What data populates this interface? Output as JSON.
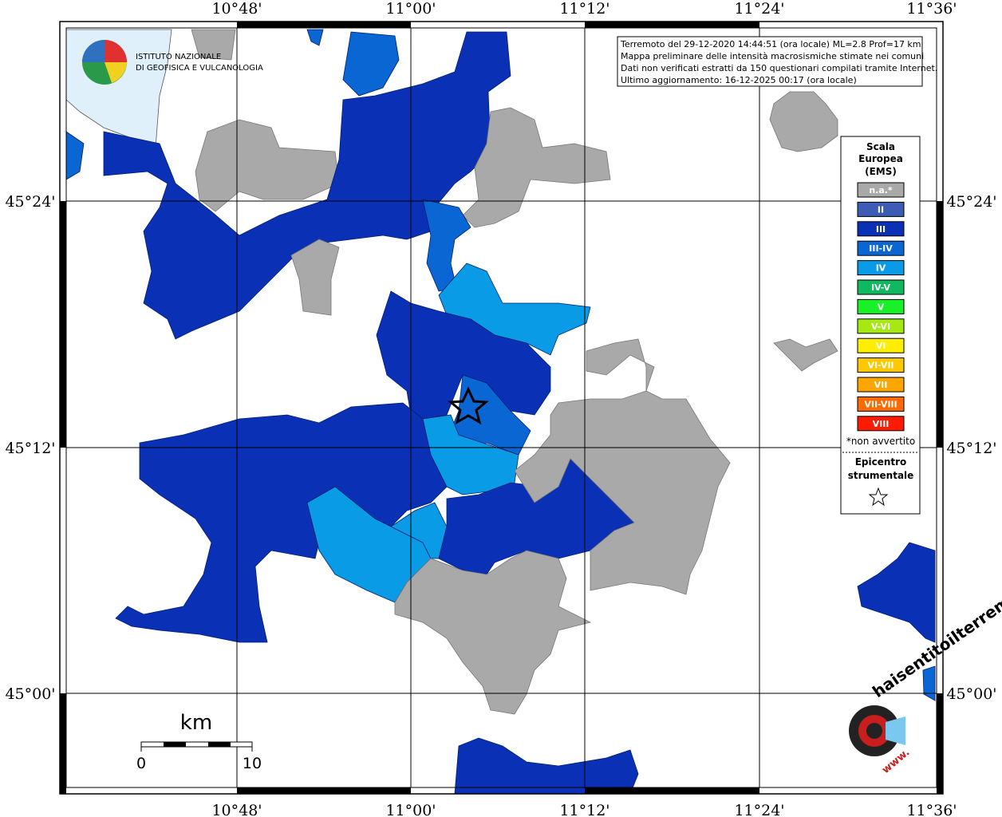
{
  "info": {
    "lines": [
      "Terremoto del 29-12-2020 14:44:51 (ora locale) ML=2.8 Prof=17 km",
      "Mappa preliminare delle intensità macrosismiche stimate nei comuni",
      "Dati non verificati estratti da 150 questionari compilati tramite Internet.",
      "Ultimo aggiornamento: 16-12-2025 00:17 (ora locale)"
    ]
  },
  "logo": {
    "lines": [
      "ISTITUTO NAZIONALE",
      "DI GEOFISICA E VULCANOLOGIA"
    ]
  },
  "axes": {
    "lon": [
      "10°48'",
      "11°00'",
      "11°12'",
      "11°24'",
      "11°36'"
    ],
    "lat": [
      "45°24'",
      "45°12'",
      "45°00'"
    ]
  },
  "legend": {
    "title": [
      "Scala",
      "Europea",
      "(EMS)"
    ],
    "items": [
      {
        "label": "n.a.*",
        "color": "#a9a9a9"
      },
      {
        "label": "II",
        "color": "#3d5cb5"
      },
      {
        "label": "III",
        "color": "#0a30b5"
      },
      {
        "label": "III-IV",
        "color": "#0a66d2"
      },
      {
        "label": "IV",
        "color": "#0a9be6"
      },
      {
        "label": "IV-V",
        "color": "#10b860"
      },
      {
        "label": "V",
        "color": "#18f028"
      },
      {
        "label": "V-VI",
        "color": "#a6e812"
      },
      {
        "label": "VI",
        "color": "#ffee00"
      },
      {
        "label": "VI-VII",
        "color": "#ffc800"
      },
      {
        "label": "VII",
        "color": "#ffa500"
      },
      {
        "label": "VII-VIII",
        "color": "#ff6a00"
      },
      {
        "label": "VIII",
        "color": "#ff1a00"
      }
    ],
    "note": "*non avvertito",
    "epicenter": [
      "Epicentro",
      "strumentale"
    ]
  },
  "scale": {
    "unit": "km",
    "start": "0",
    "end": "10"
  },
  "watermark": {
    "text": "haisentitoilterremoto.it",
    "www": "www."
  }
}
